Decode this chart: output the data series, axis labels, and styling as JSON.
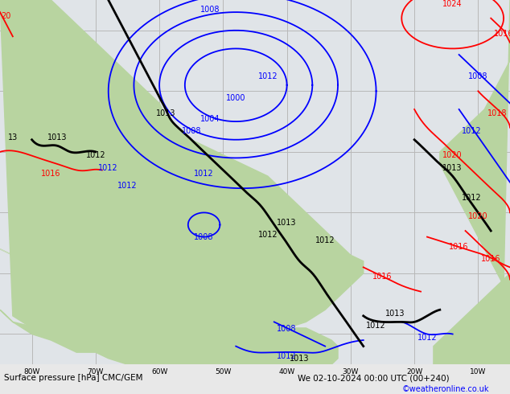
{
  "title_left": "Surface pressure [hPa] CMC/GEM",
  "title_right": "We 02-10-2024 00:00 UTC (00+240)",
  "copyright": "©weatheronline.co.uk",
  "bg_color": "#e8e8e8",
  "land_color": "#b8d4a0",
  "grid_color": "#b8b8b8",
  "ocean_color": "#e0e4e8",
  "bottom_bar_color": "#b0b0b0",
  "figsize": [
    6.34,
    4.9
  ],
  "dpi": 100,
  "lon_min": -85,
  "lon_max": -5,
  "lat_min": 5,
  "lat_max": 65,
  "lon_ticks": [
    -80,
    -70,
    -60,
    -50,
    -40,
    -30,
    -20,
    -10
  ],
  "lat_ticks": [
    10,
    20,
    30,
    40,
    50,
    60
  ],
  "lon_labels": [
    "80W",
    "70W",
    "60W",
    "50W",
    "40W",
    "30W",
    "20W",
    "10W"
  ]
}
